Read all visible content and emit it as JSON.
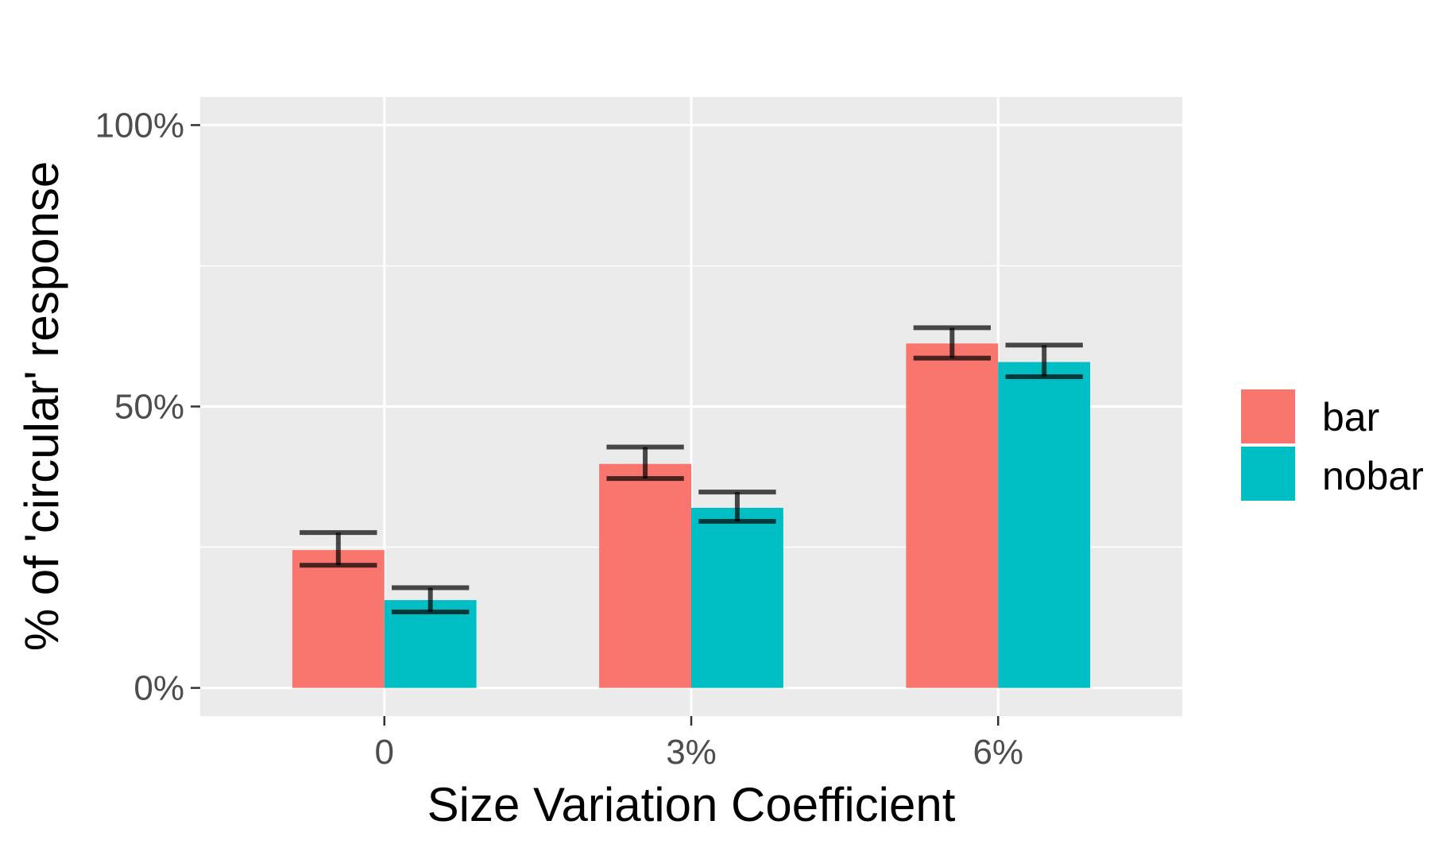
{
  "chart_data": {
    "type": "bar",
    "xlabel": "Size Variation Coefficient",
    "ylabel": "% of 'circular' response",
    "categories": [
      "0",
      "3%",
      "6%"
    ],
    "ylim": [
      -5,
      105
    ],
    "yticks": [
      {
        "value": 0,
        "label": "0%"
      },
      {
        "value": 50,
        "label": "50%"
      },
      {
        "value": 100,
        "label": "100%"
      }
    ],
    "yminor": [
      25,
      75
    ],
    "grid": true,
    "legend_position": "right",
    "series": [
      {
        "name": "bar",
        "color": "#F8766D",
        "values": [
          24.5,
          39.8,
          61.2
        ],
        "err_low": [
          21.8,
          37.2,
          58.6
        ],
        "err_high": [
          27.6,
          42.8,
          64.0
        ]
      },
      {
        "name": "nobar",
        "color": "#00BFC4",
        "values": [
          15.6,
          32.0,
          57.9
        ],
        "err_low": [
          13.5,
          29.6,
          55.3
        ],
        "err_high": [
          17.8,
          34.8,
          60.9
        ]
      }
    ]
  },
  "colors": {
    "panel_background": "#EBEBEB",
    "gridline": "#FFFFFF",
    "errorbar": "#000000"
  }
}
